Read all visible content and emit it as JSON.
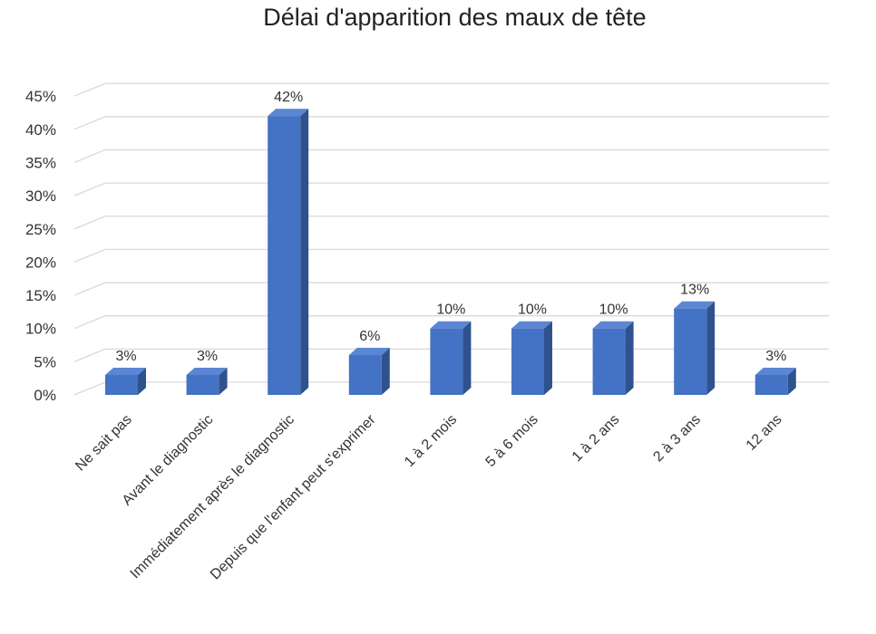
{
  "chart_data": {
    "type": "bar",
    "title": "Délai d'apparition des maux de tête",
    "xlabel": "",
    "ylabel": "",
    "categories": [
      "Ne sait pas",
      "Avant le diagnostic",
      "Immédiatement après le diagnostic",
      "Depuis que l'enfant peut s'exprimer",
      "1 à 2 mois",
      "5 à 6 mois",
      "1 à 2 ans",
      "2 à 3 ans",
      "12 ans"
    ],
    "values": [
      3,
      3,
      42,
      6,
      10,
      10,
      10,
      13,
      3
    ],
    "data_labels": [
      "3%",
      "3%",
      "42%",
      "6%",
      "10%",
      "10%",
      "10%",
      "13%",
      "3%"
    ],
    "yticks": [
      0,
      5,
      10,
      15,
      20,
      25,
      30,
      35,
      40,
      45
    ],
    "ytick_labels": [
      "0%",
      "5%",
      "10%",
      "15%",
      "20%",
      "25%",
      "30%",
      "35%",
      "40%",
      "45%"
    ],
    "ylim": [
      0,
      45
    ],
    "grid": true,
    "legend": "none",
    "bar_style": "3d",
    "colors": {
      "bar_front": "#4472C4",
      "bar_side": "#2F528F",
      "bar_top": "#5B86D3",
      "gridline": "#D9D9D9"
    }
  }
}
